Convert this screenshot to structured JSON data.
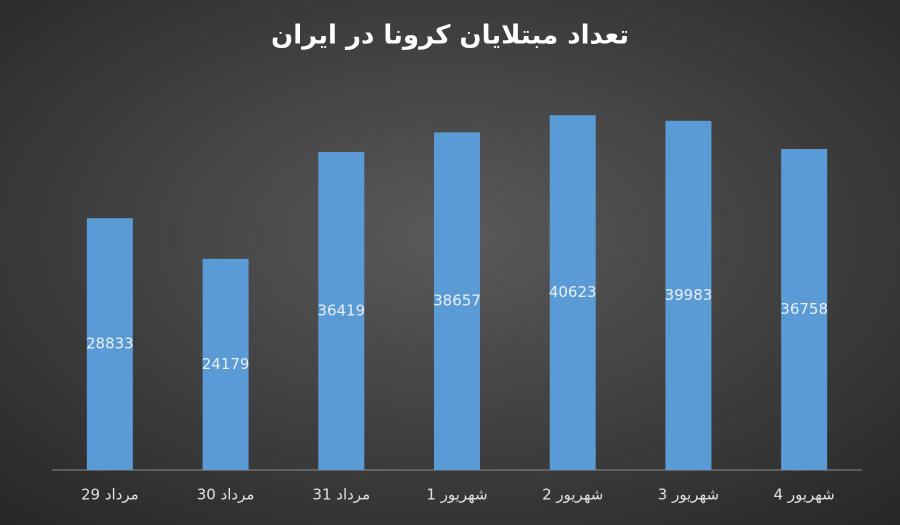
{
  "chart_data": {
    "type": "bar",
    "title": "تعداد مبتلایان کرونا در ایران",
    "categories": [
      "29 مرداد",
      "30 مرداد",
      "31 مرداد",
      "1 شهریور",
      "2 شهریور",
      "3 شهریور",
      "4 شهریور"
    ],
    "values": [
      28833,
      24179,
      36419,
      38657,
      40623,
      39983,
      36758
    ],
    "color": "#5b9bd5",
    "ylim": [
      0,
      45000
    ]
  }
}
